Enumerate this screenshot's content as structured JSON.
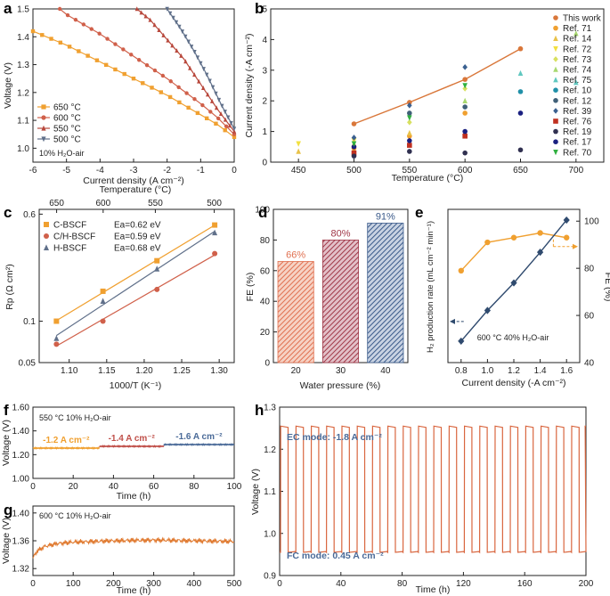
{
  "colors": {
    "orange": "#f0a030",
    "red": "#d0604a",
    "darkred": "#b8483c",
    "gray": "#60708a",
    "navy": "#2f4a6e",
    "axis": "#222222",
    "trace": "#d9663f"
  },
  "chart_data": [
    {
      "id": "a",
      "label": "a",
      "type": "line",
      "xlabel": "Current density (A cm⁻²)",
      "ylabel": "Voltage (V)",
      "xlim": [
        -6,
        0
      ],
      "ylim": [
        0.95,
        1.5
      ],
      "xticks": [
        -6,
        -5,
        -4,
        -3,
        -2,
        -1,
        0
      ],
      "yticks": [
        1.0,
        1.1,
        1.2,
        1.3,
        1.4,
        1.5
      ],
      "ytick_labels": [
        "1.0",
        "1.1",
        "1.2",
        "1.3",
        "1.4",
        "1.5"
      ],
      "annotation": "10% H₂O-air",
      "legend_position": "bottom-left",
      "series": [
        {
          "name": "650 °C",
          "color": "#f0a030",
          "marker": "square",
          "x": [
            -6,
            -5,
            -4,
            -3,
            -2,
            -1,
            -0.5,
            0
          ],
          "y": [
            1.42,
            1.37,
            1.31,
            1.25,
            1.19,
            1.12,
            1.085,
            1.04
          ]
        },
        {
          "name": "600 °C",
          "color": "#d0604a",
          "marker": "circle",
          "x": [
            -5.2,
            -5,
            -4,
            -3,
            -2,
            -1,
            -0.5,
            0
          ],
          "y": [
            1.5,
            1.48,
            1.41,
            1.33,
            1.25,
            1.16,
            1.11,
            1.05
          ]
        },
        {
          "name": "550 °C",
          "color": "#b8483c",
          "marker": "triangle",
          "x": [
            -2.9,
            -2.5,
            -2,
            -1.5,
            -1,
            -0.5,
            0
          ],
          "y": [
            1.5,
            1.46,
            1.39,
            1.32,
            1.23,
            1.14,
            1.06
          ]
        },
        {
          "name": "500 °C",
          "color": "#60708a",
          "marker": "triangle-down",
          "x": [
            -2.0,
            -1.6,
            -1.2,
            -0.8,
            -0.4,
            0
          ],
          "y": [
            1.5,
            1.43,
            1.35,
            1.26,
            1.16,
            1.07
          ]
        }
      ]
    },
    {
      "id": "b",
      "label": "b",
      "type": "scatter",
      "xlabel": "Temperature (°C)",
      "ylabel": "Current density (-A cm⁻²)",
      "xlim": [
        425,
        725
      ],
      "ylim": [
        0,
        5
      ],
      "xticks": [
        450,
        500,
        550,
        600,
        650,
        700
      ],
      "yticks": [
        0,
        1,
        2,
        3,
        4,
        5
      ],
      "legend_position": "right",
      "series": [
        {
          "name": "This work",
          "color": "#d9773a",
          "connected": true,
          "x": [
            500,
            550,
            600,
            650
          ],
          "y": [
            1.25,
            1.95,
            2.7,
            3.7
          ]
        },
        {
          "name": "Ref. 71",
          "color": "#f0a030",
          "x": [
            500,
            550,
            600
          ],
          "y": [
            0.45,
            0.85,
            1.6
          ]
        },
        {
          "name": "Ref. 14",
          "color": "#e8c24a",
          "x": [
            450,
            500,
            550
          ],
          "y": [
            0.35,
            0.6,
            0.95
          ]
        },
        {
          "name": "Ref. 72",
          "color": "#f2e040",
          "x": [
            450,
            500
          ],
          "y": [
            0.6,
            0.7
          ]
        },
        {
          "name": "Ref. 73",
          "color": "#d8e060",
          "x": [
            550,
            600
          ],
          "y": [
            1.3,
            2.4
          ]
        },
        {
          "name": "Ref. 74",
          "color": "#a8d870",
          "x": [
            600,
            700
          ],
          "y": [
            2.0,
            4.2
          ]
        },
        {
          "name": "Ref. 75",
          "color": "#60c8c0",
          "x": [
            650,
            700
          ],
          "y": [
            2.9,
            2.6
          ]
        },
        {
          "name": "Ref. 10",
          "color": "#2090a8",
          "x": [
            650
          ],
          "y": [
            2.3
          ]
        },
        {
          "name": "Ref. 12",
          "color": "#406078",
          "x": [
            550,
            600
          ],
          "y": [
            1.6,
            1.8
          ]
        },
        {
          "name": "Ref. 39",
          "color": "#3a6090",
          "x": [
            500,
            550,
            600
          ],
          "y": [
            0.8,
            1.85,
            3.1
          ]
        },
        {
          "name": "Ref. 76",
          "color": "#c03020",
          "x": [
            500,
            550,
            600
          ],
          "y": [
            0.3,
            0.55,
            0.85
          ]
        },
        {
          "name": "Ref. 19",
          "color": "#303050",
          "x": [
            500,
            550,
            600,
            650
          ],
          "y": [
            0.2,
            0.35,
            0.3,
            0.4
          ]
        },
        {
          "name": "Ref. 17",
          "color": "#1a2080",
          "x": [
            500,
            550,
            600,
            650
          ],
          "y": [
            0.5,
            0.7,
            1.0,
            1.6
          ]
        },
        {
          "name": "Ref. 70",
          "color": "#30b040",
          "x": [
            500,
            550,
            600
          ],
          "y": [
            0.6,
            1.45,
            2.5
          ]
        }
      ]
    },
    {
      "id": "c",
      "label": "c",
      "type": "scatter",
      "xlabel": "1000/T (K⁻¹)",
      "ylabel": "Rp (Ω cm²)",
      "toplabel": "Temperature (°C)",
      "log_y": true,
      "xlim": [
        1.06,
        1.32
      ],
      "ylim": [
        0.05,
        0.65
      ],
      "xticks": [
        1.1,
        1.15,
        1.2,
        1.25,
        1.3
      ],
      "xtick_labels": [
        "1.10",
        "1.15",
        "1.20",
        "1.25",
        "1.30"
      ],
      "yticks": [
        0.05,
        0.1,
        0.6
      ],
      "ytick_labels": [
        "0.05",
        "0.1",
        "0.6"
      ],
      "top_ticks": [
        650,
        600,
        550,
        500
      ],
      "legend_position": "top-left",
      "series": [
        {
          "name": "C-BSCF",
          "ea": "Ea=0.62 eV",
          "color": "#f0a030",
          "marker": "square",
          "x": [
            1.083,
            1.145,
            1.217,
            1.294
          ],
          "y": [
            0.1,
            0.165,
            0.275,
            0.5
          ]
        },
        {
          "name": "C/H-BSCF",
          "ea": "Ea=0.59 eV",
          "color": "#d0604a",
          "marker": "circle",
          "x": [
            1.083,
            1.145,
            1.217,
            1.294
          ],
          "y": [
            0.068,
            0.1,
            0.17,
            0.31
          ]
        },
        {
          "name": "H-BSCF",
          "ea": "Ea=0.68 eV",
          "color": "#60708a",
          "marker": "triangle",
          "x": [
            1.083,
            1.145,
            1.217,
            1.294
          ],
          "y": [
            0.075,
            0.14,
            0.24,
            0.44
          ]
        }
      ]
    },
    {
      "id": "d",
      "label": "d",
      "type": "bar",
      "xlabel": "Water pressure (%)",
      "ylabel": "FE (%)",
      "categories": [
        "20",
        "30",
        "40"
      ],
      "values": [
        66,
        80,
        91
      ],
      "data_labels": [
        "66%",
        "80%",
        "91%"
      ],
      "ylim": [
        0,
        100
      ],
      "yticks": [
        0,
        20,
        40,
        60,
        80,
        100
      ],
      "bar_colors": [
        "#e07050",
        "#a03848",
        "#3a5a8a"
      ]
    },
    {
      "id": "e",
      "label": "e",
      "type": "line",
      "xlabel": "Current density (-A cm⁻²)",
      "ylabel": "H₂ production rate (mL cm⁻² min⁻¹)",
      "ylabel_right": "FE (%)",
      "annotation": "600 °C  40% H₂O-air",
      "xlim": [
        0.7,
        1.7
      ],
      "xticks": [
        0.8,
        1.0,
        1.2,
        1.4,
        1.6
      ],
      "xtick_labels": [
        "0.8",
        "1.0",
        "1.2",
        "1.4",
        "1.6"
      ],
      "ylim_right": [
        40,
        105
      ],
      "yticks_right": [
        40,
        60,
        80,
        100
      ],
      "series": [
        {
          "name": "H₂ production rate",
          "axis": "left",
          "color": "#2f4a6e",
          "marker": "diamond",
          "x": [
            0.8,
            1.0,
            1.2,
            1.4,
            1.6
          ],
          "y_frac": [
            0.14,
            0.34,
            0.52,
            0.72,
            0.93
          ]
        },
        {
          "name": "FE",
          "axis": "right",
          "color": "#f0a030",
          "marker": "circle",
          "x": [
            0.8,
            1.0,
            1.2,
            1.4,
            1.6
          ],
          "y": [
            79,
            91,
            93,
            95,
            93
          ]
        }
      ]
    },
    {
      "id": "f",
      "label": "f",
      "type": "line",
      "xlabel": "Time (h)",
      "ylabel": "Voltage (V)",
      "xlim": [
        0,
        100
      ],
      "ylim": [
        1.0,
        1.6
      ],
      "xticks": [
        0,
        20,
        40,
        60,
        80,
        100
      ],
      "yticks": [
        1.0,
        1.2,
        1.4,
        1.6
      ],
      "ytick_labels": [
        "1.00",
        "1.20",
        "1.40",
        "1.60"
      ],
      "annotation": "550 °C   10% H₂O-air",
      "segments": [
        {
          "name": "-1.2 A cm⁻²",
          "color": "#f0a030",
          "x": [
            0,
            33
          ],
          "y": 1.255
        },
        {
          "name": "-1.4 A cm⁻²",
          "color": "#c0504a",
          "x": [
            33,
            65
          ],
          "y": 1.27
        },
        {
          "name": "-1.6 A cm⁻²",
          "color": "#4a6a98",
          "x": [
            65,
            100
          ],
          "y": 1.285
        }
      ]
    },
    {
      "id": "g",
      "label": "g",
      "type": "line",
      "xlabel": "Time (h)",
      "ylabel": "Voltage (V)",
      "xlim": [
        0,
        500
      ],
      "ylim": [
        1.31,
        1.41
      ],
      "xticks": [
        0,
        100,
        200,
        300,
        400,
        500
      ],
      "yticks": [
        1.32,
        1.36,
        1.4
      ],
      "ytick_labels": [
        "1.32",
        "1.36",
        "1.40"
      ],
      "annotation": "600 °C   10% H₂O-air",
      "color": "#e07a30",
      "trend": {
        "x": [
          0,
          10,
          30,
          60,
          100,
          200,
          300,
          400,
          500
        ],
        "y": [
          1.335,
          1.345,
          1.352,
          1.356,
          1.358,
          1.36,
          1.361,
          1.36,
          1.359
        ]
      }
    },
    {
      "id": "h",
      "label": "h",
      "type": "line",
      "xlabel": "Time (h)",
      "ylabel": "Voltage (V)",
      "xlim": [
        0,
        200
      ],
      "ylim": [
        0.9,
        1.3
      ],
      "xticks": [
        0,
        40,
        80,
        120,
        160,
        200
      ],
      "yticks": [
        0.9,
        1.0,
        1.1,
        1.2,
        1.3
      ],
      "ytick_labels": [
        "0.9",
        "1.0",
        "1.1",
        "1.2",
        "1.3"
      ],
      "annotation_top": "EC mode: -1.8 A cm⁻²",
      "annotation_bottom": "FC mode: 0.45 A cm⁻²",
      "color": "#d9663f",
      "cycles": 20,
      "period_h": 10,
      "high_v": 1.255,
      "low_v": 0.955
    }
  ]
}
